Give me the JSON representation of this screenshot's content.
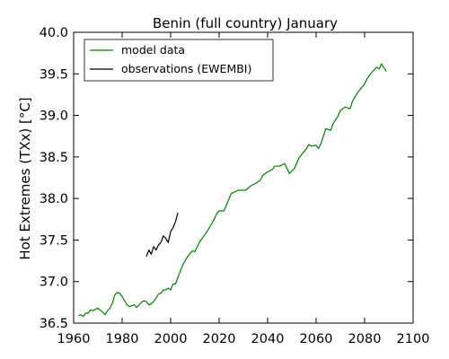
{
  "chart_data": {
    "type": "line",
    "title": "Benin (full country) January",
    "xlabel": "",
    "ylabel": "Hot Extremes (TXx) [°C]",
    "xlim": [
      1960,
      2100
    ],
    "ylim": [
      36.5,
      40.0
    ],
    "xticks": [
      "1960",
      "1980",
      "2000",
      "2020",
      "2040",
      "2060",
      "2080",
      "2100"
    ],
    "yticks": [
      "36.5",
      "37.0",
      "37.5",
      "38.0",
      "38.5",
      "39.0",
      "39.5",
      "40.0"
    ],
    "grid": false,
    "legend_position": "upper-left",
    "series": [
      {
        "name": "model data",
        "color": "#008000",
        "x": [
          1962,
          1963,
          1964,
          1965,
          1966,
          1967,
          1968,
          1970,
          1972,
          1973,
          1974,
          1975,
          1976,
          1977,
          1978,
          1979,
          1980,
          1982,
          1983,
          1984,
          1985,
          1986,
          1987,
          1988,
          1989,
          1990,
          1991,
          1992,
          1993,
          1994,
          1995,
          1996,
          1997,
          1998,
          1999,
          2000,
          2001,
          2002,
          2003,
          2005,
          2007,
          2009,
          2010,
          2012,
          2015,
          2018,
          2019,
          2020,
          2022,
          2025,
          2028,
          2031,
          2033,
          2035,
          2037,
          2038,
          2040,
          2042,
          2043,
          2045,
          2047,
          2049,
          2051,
          2053,
          2056,
          2057,
          2058,
          2060,
          2061,
          2062,
          2064,
          2066,
          2067,
          2069,
          2070,
          2072,
          2074,
          2075,
          2077,
          2080,
          2081,
          2083,
          2085,
          2086,
          2087,
          2088,
          2089
        ],
        "y": [
          36.59,
          36.6,
          36.58,
          36.62,
          36.62,
          36.66,
          36.65,
          36.68,
          36.63,
          36.6,
          36.65,
          36.68,
          36.74,
          36.84,
          36.87,
          36.86,
          36.82,
          36.72,
          36.7,
          36.71,
          36.72,
          36.69,
          36.72,
          36.75,
          36.77,
          36.76,
          36.72,
          36.73,
          36.76,
          36.8,
          36.85,
          36.86,
          36.9,
          36.9,
          36.92,
          36.9,
          36.97,
          36.97,
          37.05,
          37.2,
          37.3,
          37.37,
          37.36,
          37.48,
          37.6,
          37.75,
          37.82,
          37.85,
          37.85,
          38.06,
          38.1,
          38.1,
          38.15,
          38.18,
          38.22,
          38.28,
          38.32,
          38.35,
          38.39,
          38.39,
          38.42,
          38.3,
          38.36,
          38.49,
          38.6,
          38.65,
          38.63,
          38.64,
          38.6,
          38.66,
          38.84,
          38.82,
          38.9,
          38.99,
          39.06,
          39.1,
          39.08,
          39.17,
          39.27,
          39.38,
          39.44,
          39.52,
          39.58,
          39.56,
          39.62,
          39.57,
          39.53
        ]
      },
      {
        "name": "observations (EWEMBI)",
        "color": "#000000",
        "x": [
          1990,
          1991,
          1992,
          1993,
          1994,
          1995,
          1996,
          1997,
          1998,
          1999,
          2000,
          2001,
          2002,
          2003
        ],
        "y": [
          37.3,
          37.38,
          37.33,
          37.42,
          37.38,
          37.44,
          37.47,
          37.55,
          37.52,
          37.47,
          37.6,
          37.65,
          37.72,
          37.83
        ]
      }
    ]
  }
}
